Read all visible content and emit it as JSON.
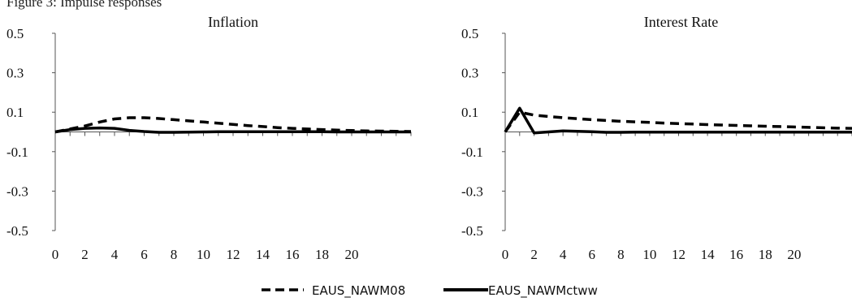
{
  "caption": "Figure 3: Impulse responses",
  "legend": {
    "entries": [
      {
        "label": "EAUS_NAWM08",
        "style": "dashed"
      },
      {
        "label": "EAUS_NAWMctww",
        "style": "solid"
      }
    ]
  },
  "colors": {
    "series": "#000000",
    "axis": "#555555",
    "text": "#111111"
  },
  "chart_data": [
    {
      "type": "line",
      "title": "Inflation",
      "xlabel": "",
      "ylabel": "",
      "x": [
        0,
        1,
        2,
        3,
        4,
        5,
        6,
        7,
        8,
        9,
        10,
        11,
        12,
        13,
        14,
        15,
        16,
        17,
        18,
        19,
        20,
        21,
        22,
        23,
        24
      ],
      "xticks": [
        0,
        2,
        4,
        6,
        8,
        10,
        12,
        14,
        16,
        18,
        20
      ],
      "xlim": [
        0,
        24
      ],
      "yticks": [
        0.5,
        0.3,
        0.1,
        -0.1,
        -0.3,
        -0.5
      ],
      "ytick_labels": [
        "0.5",
        "0.3",
        "0.1",
        "-0.1",
        "-0.3",
        "-0.5"
      ],
      "ylim": [
        -0.5,
        0.5
      ],
      "grid": false,
      "series": [
        {
          "name": "EAUS_NAWM08",
          "style": "dashed",
          "values": [
            0.0,
            0.015,
            0.03,
            0.05,
            0.066,
            0.072,
            0.072,
            0.068,
            0.062,
            0.056,
            0.05,
            0.044,
            0.038,
            0.032,
            0.027,
            0.022,
            0.018,
            0.015,
            0.012,
            0.009,
            0.007,
            0.005,
            0.004,
            0.003,
            0.002
          ]
        },
        {
          "name": "EAUS_NAWMctww",
          "style": "solid",
          "values": [
            0.0,
            0.012,
            0.018,
            0.02,
            0.018,
            0.008,
            0.002,
            -0.002,
            -0.002,
            -0.001,
            0.0,
            0.001,
            0.001,
            0.001,
            0.001,
            0.001,
            0.001,
            0.001,
            0.001,
            0.0,
            0.0,
            0.0,
            0.0,
            0.0,
            0.0
          ]
        }
      ]
    },
    {
      "type": "line",
      "title": "Interest Rate",
      "xlabel": "",
      "ylabel": "",
      "x": [
        0,
        1,
        2,
        3,
        4,
        5,
        6,
        7,
        8,
        9,
        10,
        11,
        12,
        13,
        14,
        15,
        16,
        17,
        18,
        19,
        20,
        21,
        22,
        23,
        24
      ],
      "xticks": [
        0,
        2,
        4,
        6,
        8,
        10,
        12,
        14,
        16,
        18,
        20
      ],
      "xlim": [
        0,
        24
      ],
      "yticks": [
        0.5,
        0.3,
        0.1,
        -0.1,
        -0.3,
        -0.5
      ],
      "ytick_labels": [
        "0.5",
        "0.3",
        "0.1",
        "-0.1",
        "-0.3",
        "-0.5"
      ],
      "ylim": [
        -0.5,
        0.5
      ],
      "grid": false,
      "series": [
        {
          "name": "EAUS_NAWM08",
          "style": "dashed",
          "values": [
            0.0,
            0.1,
            0.085,
            0.078,
            0.072,
            0.067,
            0.062,
            0.058,
            0.054,
            0.051,
            0.048,
            0.045,
            0.042,
            0.04,
            0.037,
            0.035,
            0.033,
            0.031,
            0.029,
            0.027,
            0.025,
            0.023,
            0.021,
            0.019,
            0.018
          ]
        },
        {
          "name": "EAUS_NAWMctww",
          "style": "solid",
          "values": [
            0.0,
            0.12,
            -0.005,
            0.0,
            0.005,
            0.003,
            0.001,
            -0.002,
            -0.002,
            -0.001,
            -0.001,
            -0.001,
            -0.001,
            -0.001,
            -0.001,
            -0.001,
            -0.001,
            -0.001,
            -0.001,
            -0.001,
            -0.001,
            -0.001,
            -0.001,
            -0.001,
            -0.001
          ]
        }
      ]
    }
  ]
}
